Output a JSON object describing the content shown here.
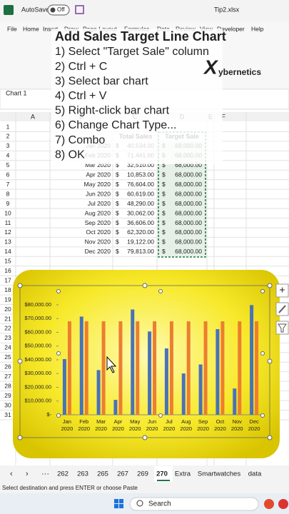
{
  "title_bar": {
    "autosave": "AutoSave",
    "toggle": "Off",
    "file": "Tip2.xlsx"
  },
  "ribbon_tabs": [
    "File",
    "Home",
    "Insert",
    "Draw",
    "Page Layout",
    "Formulas",
    "Data",
    "Review",
    "View",
    "Developer",
    "Help"
  ],
  "name_box": "Chart 1",
  "overlay": {
    "title": "Add Sales Target Line Chart",
    "steps": [
      "1) Select \"Target Sale\" column",
      "2) Ctrl + C",
      "3) Select bar chart",
      "4) Ctrl + V",
      "5) Right-click bar chart",
      "6) Change Chart Type...",
      "7) Combo",
      "8) OK"
    ]
  },
  "logo": {
    "mark": "X",
    "text": "ybernetics"
  },
  "columns": [
    "A",
    "B",
    "C",
    "D",
    "E",
    "F"
  ],
  "row_numbers": [
    1,
    2,
    3,
    4,
    5,
    6,
    7,
    8,
    9,
    10,
    11,
    12,
    13,
    14,
    15,
    16,
    17,
    18,
    19,
    20,
    21,
    22,
    23,
    24,
    25,
    26,
    27,
    28,
    29,
    30,
    31
  ],
  "sheet": {
    "header": [
      "Total Sales",
      "Target Sale"
    ],
    "rows": [
      [
        "Jan 2020",
        "$",
        "40,534.00",
        "$",
        "68,000.00"
      ],
      [
        "Feb 2020",
        "$",
        "71,441.00",
        "$",
        "68,000.00"
      ],
      [
        "Mar 2020",
        "$",
        "32,510.00",
        "$",
        "68,000.00"
      ],
      [
        "Apr 2020",
        "$",
        "10,853.00",
        "$",
        "68,000.00"
      ],
      [
        "May 2020",
        "$",
        "76,604.00",
        "$",
        "68,000.00"
      ],
      [
        "Jun 2020",
        "$",
        "60,619.00",
        "$",
        "68,000.00"
      ],
      [
        "Jul 2020",
        "$",
        "48,290.00",
        "$",
        "68,000.00"
      ],
      [
        "Aug 2020",
        "$",
        "30,062.00",
        "$",
        "68,000.00"
      ],
      [
        "Sep 2020",
        "$",
        "36,606.00",
        "$",
        "68,000.00"
      ],
      [
        "Oct 2020",
        "$",
        "62,320.00",
        "$",
        "68,000.00"
      ],
      [
        "Nov 2020",
        "$",
        "19,122.00",
        "$",
        "68,000.00"
      ],
      [
        "Dec 2020",
        "$",
        "79,813.00",
        "$",
        "68,000.00"
      ]
    ]
  },
  "chart": {
    "type": "bar",
    "categories": [
      [
        "Jan",
        "2020"
      ],
      [
        "Feb",
        "2020"
      ],
      [
        "Mar",
        "2020"
      ],
      [
        "Apr",
        "2020"
      ],
      [
        "May",
        "2020"
      ],
      [
        "Jun",
        "2020"
      ],
      [
        "Jul",
        "2020"
      ],
      [
        "Aug",
        "2020"
      ],
      [
        "Sep",
        "2020"
      ],
      [
        "Oct",
        "2020"
      ],
      [
        "Nov",
        "2020"
      ],
      [
        "Dec",
        "2020"
      ]
    ],
    "series": [
      {
        "color": "#4a72b8",
        "values": [
          40534,
          71441,
          32510,
          10853,
          76604,
          60619,
          48290,
          30062,
          36606,
          62320,
          19122,
          79813
        ]
      },
      {
        "color": "#ed7d31",
        "values": [
          68000,
          68000,
          68000,
          68000,
          68000,
          68000,
          68000,
          68000,
          68000,
          68000,
          68000,
          68000
        ]
      }
    ],
    "ylim": [
      0,
      80000
    ],
    "yticks": [
      {
        "value": 0,
        "label": "$-"
      },
      {
        "value": 10000,
        "label": "$10,000.00"
      },
      {
        "value": 20000,
        "label": "$20,000.00"
      },
      {
        "value": 30000,
        "label": "$30,000.00"
      },
      {
        "value": 40000,
        "label": "$40,000.00"
      },
      {
        "value": 50000,
        "label": "$50,000.00"
      },
      {
        "value": 60000,
        "label": "$60,000.00"
      },
      {
        "value": 70000,
        "label": "$70,000.00"
      },
      {
        "value": 80000,
        "label": "$80,000.00"
      }
    ]
  },
  "sheet_tabs": [
    "262",
    "263",
    "265",
    "267",
    "269",
    "270",
    "Extra",
    "Smartwatches",
    "data"
  ],
  "active_tab_index": 5,
  "status": "Select destination and press ENTER or choose Paste",
  "taskbar": {
    "search": "Search"
  }
}
